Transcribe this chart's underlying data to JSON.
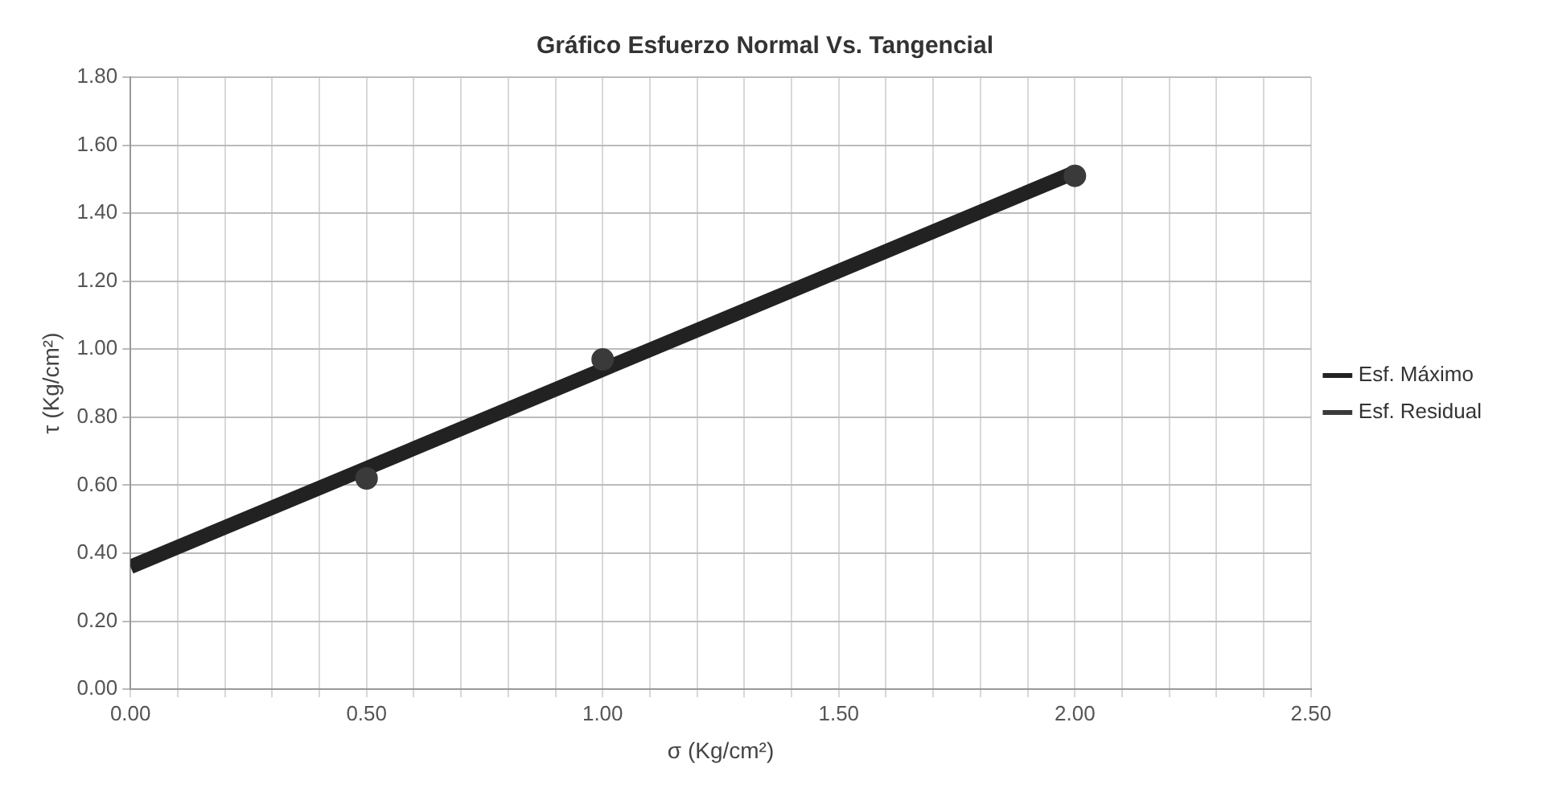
{
  "chart_data": {
    "type": "line",
    "title": "Gráfico Esfuerzo Normal Vs. Tangencial",
    "xlabel": "σ (Kg/cm²)",
    "ylabel": "τ (Kg/cm²)",
    "series": [
      {
        "name": "Esf. Máximo",
        "type": "line",
        "color": "#222222",
        "x": [
          0,
          2
        ],
        "values": [
          0.36,
          1.52
        ],
        "marker": "none"
      },
      {
        "name": "Esf. Residual",
        "type": "scatter",
        "color": "#3a3a3a",
        "x": [
          0.5,
          1,
          2
        ],
        "values": [
          0.62,
          0.97,
          1.51
        ],
        "marker": "circle"
      }
    ],
    "xlim": [
      0,
      2.5
    ],
    "xticks": [
      {
        "value": 0,
        "label": "0.00"
      },
      {
        "value": 0.1,
        "label": null
      },
      {
        "value": 0.2,
        "label": null
      },
      {
        "value": 0.3,
        "label": null
      },
      {
        "value": 0.4,
        "label": null
      },
      {
        "value": 0.5,
        "label": "0.50"
      },
      {
        "value": 0.6,
        "label": null
      },
      {
        "value": 0.7,
        "label": null
      },
      {
        "value": 0.8,
        "label": null
      },
      {
        "value": 0.9,
        "label": null
      },
      {
        "value": 1,
        "label": "1.00"
      },
      {
        "value": 1.1,
        "label": null
      },
      {
        "value": 1.2,
        "label": null
      },
      {
        "value": 1.3,
        "label": null
      },
      {
        "value": 1.4,
        "label": null
      },
      {
        "value": 1.5,
        "label": "1.50"
      },
      {
        "value": 1.6,
        "label": null
      },
      {
        "value": 1.7,
        "label": null
      },
      {
        "value": 1.8,
        "label": null
      },
      {
        "value": 1.9,
        "label": null
      },
      {
        "value": 2,
        "label": "2.00"
      },
      {
        "value": 2.1,
        "label": null
      },
      {
        "value": 2.2,
        "label": null
      },
      {
        "value": 2.3,
        "label": null
      },
      {
        "value": 2.4,
        "label": null
      },
      {
        "value": 2.5,
        "label": "2.50"
      }
    ],
    "ylim": [
      0,
      1.8
    ],
    "yticks": [
      {
        "value": 0,
        "label": "0.00"
      },
      {
        "value": 0.2,
        "label": "0.20"
      },
      {
        "value": 0.4,
        "label": "0.40"
      },
      {
        "value": 0.6,
        "label": "0.60"
      },
      {
        "value": 0.8,
        "label": "0.80"
      },
      {
        "value": 1,
        "label": "1.00"
      },
      {
        "value": 1.2,
        "label": "1.20"
      },
      {
        "value": 1.4,
        "label": "1.40"
      },
      {
        "value": 1.6,
        "label": "1.60"
      },
      {
        "value": 1.8,
        "label": "1.80"
      }
    ],
    "grid": true,
    "legend": "right"
  }
}
